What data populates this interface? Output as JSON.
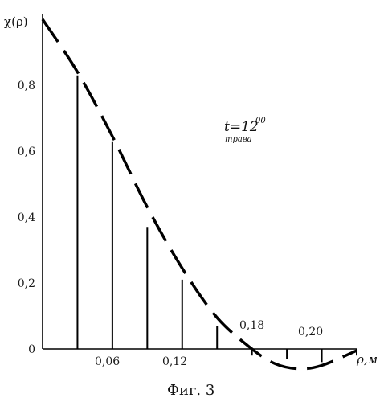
{
  "chart_data": {
    "type": "bar",
    "title": "",
    "ylabel": "χ(ρ)",
    "xlabel": "ρ,м",
    "xlim": [
      0,
      0.27
    ],
    "ylim": [
      0,
      1.0
    ],
    "y_ticks": [
      "0",
      "0,2",
      "0,4",
      "0,6",
      "0,8"
    ],
    "x_ticks": [
      "0,06",
      "0,12"
    ],
    "point_labels": [
      "0,18",
      "0,20"
    ],
    "annotation": {
      "main": "t=12",
      "superscript": "00",
      "subscript": "трава"
    },
    "bars": {
      "x": [
        0.03,
        0.06,
        0.09,
        0.12,
        0.15,
        0.18,
        0.21,
        0.24,
        0.27
      ],
      "values": [
        0.83,
        0.63,
        0.37,
        0.21,
        0.07,
        -0.02,
        -0.03,
        -0.04,
        -0.02
      ]
    },
    "envelope": {
      "style": "dashed",
      "x": [
        0.0,
        0.03,
        0.06,
        0.09,
        0.12,
        0.15,
        0.18,
        0.2,
        0.22,
        0.24,
        0.27
      ],
      "values": [
        1.0,
        0.84,
        0.645,
        0.43,
        0.245,
        0.095,
        0.0,
        -0.045,
        -0.06,
        -0.05,
        -0.005
      ]
    },
    "grid": false,
    "caption": "Фиг. 3"
  }
}
